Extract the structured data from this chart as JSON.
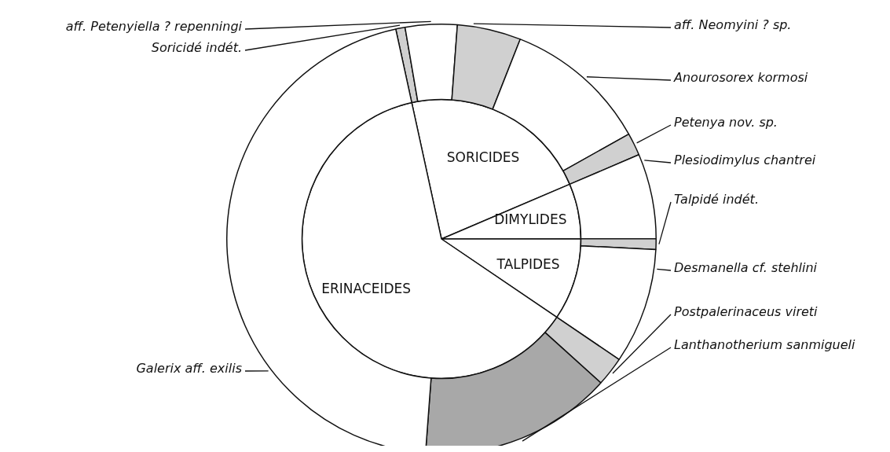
{
  "chart_data": [
    {
      "type": "pie",
      "categories": [
        "SORICIDES",
        "DIMYLIDES",
        "TALPIDES",
        "ERINACEIDES"
      ],
      "values": [
        22.0,
        6.4,
        9.5,
        62.1
      ],
      "colors": [
        "#ffffff",
        "#ffffff",
        "#ffffff",
        "#ffffff"
      ]
    },
    {
      "type": "donut",
      "categories": [
        "Soricidé indét.",
        "aff. Petenyiella ? repenningi",
        "aff. Neomyini ? sp.",
        "Anourosorex kormosi",
        "Petenya nov. sp.",
        "Plesiodimylus chantrei",
        "Talpidé indét.",
        "Desmanella cf. stehlini",
        "Postpalerinaceus vireti",
        "Lanthanotherium sanmigueli",
        "Galerix aff. exilis"
      ],
      "values": [
        0.7,
        3.9,
        4.8,
        10.9,
        1.7,
        6.4,
        0.8,
        8.7,
        2.2,
        14.5,
        45.4
      ],
      "colors": [
        "#d0d0d0",
        "#ffffff",
        "#d0d0d0",
        "#ffffff",
        "#d0d0d0",
        "#ffffff",
        "#d0d0d0",
        "#ffffff",
        "#d0d0d0",
        "#a8a8a8",
        "#ffffff"
      ]
    }
  ]
}
